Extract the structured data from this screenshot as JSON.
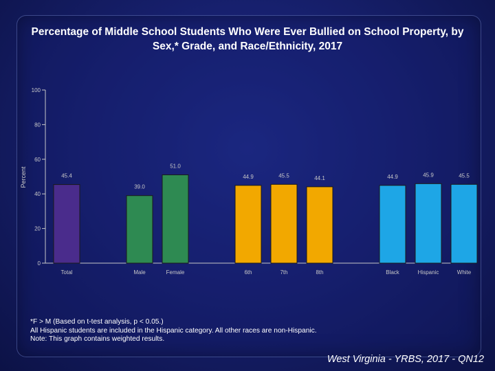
{
  "chart_data": {
    "type": "bar",
    "title": "Percentage of Middle School Students Who Were Ever Bullied on School Property, by Sex,* Grade, and Race/Ethnicity, 2017",
    "ylabel": "Percent",
    "ylim": [
      0,
      100
    ],
    "yticks": [
      "100",
      "80",
      "60",
      "40",
      "20",
      "0"
    ],
    "groups": [
      {
        "name": "Total",
        "categories": [
          "Total"
        ],
        "values": [
          45.4
        ],
        "labels": [
          "45.4"
        ],
        "color": "#4a2c8c"
      },
      {
        "name": "Sex",
        "categories": [
          "Male",
          "Female"
        ],
        "values": [
          39.0,
          51.0
        ],
        "labels": [
          "39.0",
          "51.0"
        ],
        "color": "#2e8a52"
      },
      {
        "name": "Grade",
        "categories": [
          "6th",
          "7th",
          "8th"
        ],
        "values": [
          44.9,
          45.5,
          44.1
        ],
        "labels": [
          "44.9",
          "45.5",
          "44.1"
        ],
        "color": "#f2a800"
      },
      {
        "name": "Race/Ethnicity",
        "categories": [
          "Black",
          "Hispanic",
          "White"
        ],
        "values": [
          44.9,
          45.9,
          45.5
        ],
        "labels": [
          "44.9",
          "45.9",
          "45.5"
        ],
        "color": "#1ea6e6"
      }
    ],
    "grid": false
  },
  "footnotes": [
    "*F > M (Based on t-test analysis, p < 0.05.)",
    "All Hispanic students are included in the Hispanic category.  All other races are non-Hispanic.",
    "Note: This graph contains weighted results."
  ],
  "source": "West Virginia - YRBS, 2017 - QN12"
}
